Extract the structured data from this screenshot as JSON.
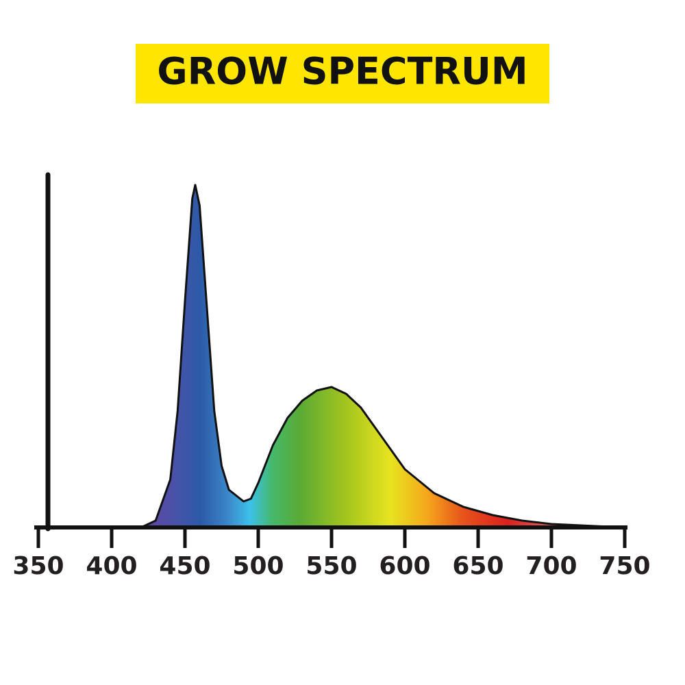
{
  "chart_data": {
    "type": "area",
    "title": "GROW SPECTRUM",
    "x": [
      420,
      430,
      440,
      445,
      450,
      455,
      457,
      460,
      465,
      470,
      475,
      480,
      490,
      495,
      500,
      510,
      520,
      530,
      540,
      550,
      560,
      570,
      580,
      590,
      600,
      620,
      640,
      660,
      680,
      700,
      720,
      740
    ],
    "values": [
      0,
      2,
      14,
      34,
      66,
      96,
      100,
      94,
      64,
      34,
      18,
      11,
      7.6,
      8.4,
      13,
      24,
      32,
      37,
      40,
      41,
      39,
      35,
      29,
      23,
      17,
      10,
      6,
      3.6,
      2,
      1,
      0.6,
      0.2
    ],
    "xlim": [
      350,
      750
    ],
    "xticks": [
      350,
      400,
      450,
      500,
      550,
      600,
      650,
      700,
      750
    ],
    "ylim": [
      0,
      103
    ]
  }
}
